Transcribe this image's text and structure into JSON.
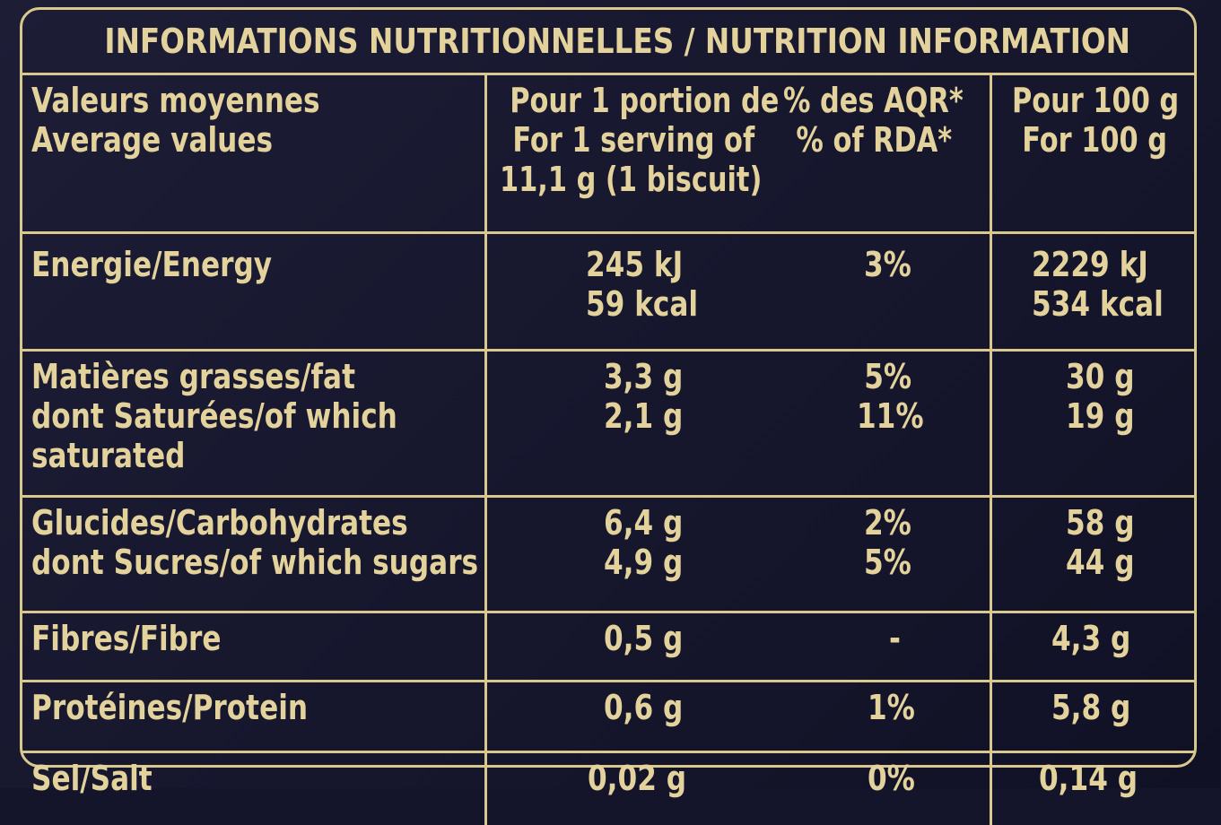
{
  "title": "INFORMATIONS NUTRITIONNELLES / NUTRITION INFORMATION",
  "header": {
    "label_fr": "Valeurs moyennes",
    "label_en": "Average values",
    "serving_fr": "Pour 1 portion de",
    "serving_en": "For 1 serving of",
    "serving_size": "11,1 g (1 biscuit)",
    "rda_fr": "% des AQR*",
    "rda_en": "% of RDA*",
    "per100_fr": "Pour 100 g",
    "per100_en": "For 100 g"
  },
  "rows": {
    "energy": {
      "label": "Energie/Energy",
      "serving_kj": "245 kJ",
      "serving_kcal": "59 kcal",
      "rda": "3%",
      "per100_kj": "2229 kJ",
      "per100_kcal": "534 kcal"
    },
    "fat": {
      "label_1": "Matières grasses/fat",
      "label_2": "dont Saturées/of which",
      "label_3": "saturated",
      "serving_fat": "3,3 g",
      "serving_sat": "2,1 g",
      "rda_fat": "5%",
      "rda_sat": "11%",
      "per100_fat": "30 g",
      "per100_sat": "19 g"
    },
    "carb": {
      "label_1": "Glucides/Carbohydrates",
      "label_2": "dont Sucres/of which sugars",
      "serving_carb": "6,4 g",
      "serving_sugar": "4,9 g",
      "rda_carb": "2%",
      "rda_sugar": "5%",
      "per100_carb": "58 g",
      "per100_sugar": "44 g"
    },
    "fibre": {
      "label": "Fibres/Fibre",
      "serving": "0,5 g",
      "rda": "-",
      "per100": "4,3 g"
    },
    "protein": {
      "label": "Protéines/Protein",
      "serving": "0,6 g",
      "rda": "1%",
      "per100": "5,8 g"
    },
    "salt": {
      "label": "Sel/Salt",
      "serving": "0,02 g",
      "rda": "0%",
      "per100": "0,14 g"
    }
  },
  "colors": {
    "background": "#17172e",
    "gold": "#e3d29b",
    "rule": "#d9c88e"
  }
}
